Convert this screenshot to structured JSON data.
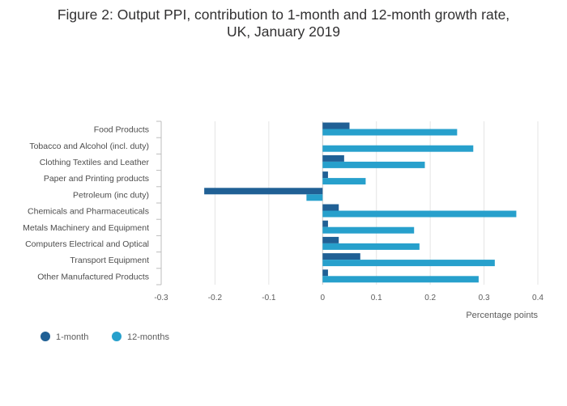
{
  "title": {
    "line1": "Figure 2: Output PPI, contribution to 1-month and 12-month growth rate,",
    "line2": "UK, January 2019"
  },
  "chart_data": {
    "type": "bar",
    "orientation": "horizontal",
    "categories": [
      "Food Products",
      "Tobacco and Alcohol (incl. duty)",
      "Clothing Textiles and Leather",
      "Paper and Printing products",
      "Petroleum (inc duty)",
      "Chemicals and Pharmaceuticals",
      "Metals Machinery and Equipment",
      "Computers Electrical and Optical",
      "Transport Equipment",
      "Other Manufactured Products"
    ],
    "series": [
      {
        "name": "1-month",
        "color": "#206095",
        "values": [
          0.05,
          0.0,
          0.04,
          0.01,
          -0.22,
          0.03,
          0.01,
          0.03,
          0.07,
          0.01
        ]
      },
      {
        "name": "12-months",
        "color": "#27a0cc",
        "values": [
          0.25,
          0.28,
          0.19,
          0.08,
          -0.03,
          0.36,
          0.17,
          0.18,
          0.32,
          0.29
        ]
      }
    ],
    "xlabel": "Percentage points",
    "ylabel": "",
    "xlim": [
      -0.3,
      0.4
    ],
    "xticks": [
      -0.3,
      -0.2,
      -0.1,
      0,
      0.1,
      0.2,
      0.3,
      0.4
    ],
    "xtick_labels": [
      "-0.3",
      "-0.2",
      "-0.1",
      "0",
      "0.1",
      "0.2",
      "0.3",
      "0.4"
    ],
    "grid": true,
    "legend_position": "bottom-left"
  }
}
